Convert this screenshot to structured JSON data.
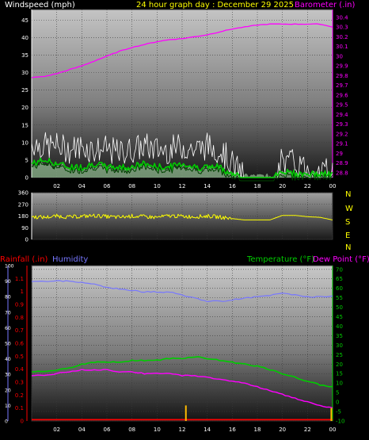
{
  "title_bar": {
    "left": "Windspeed (mph)",
    "center": "24 hour graph day : December 29 2025",
    "right": "Barometer (.in)"
  },
  "lower_headers": {
    "rainfall": "Rainfall (.in)",
    "humidity": "Humidity",
    "temperature": "Temperature (°F)",
    "dewpoint": "Dew Point (°F)"
  },
  "compass_letters": [
    "N",
    "W",
    "S",
    "E",
    "N"
  ],
  "colors": {
    "windspeed_avg": "#00cc00",
    "windspeed_gust": "#ffffff",
    "windspeed_fill": "#b8f0b8",
    "barometer": "#ff00ff",
    "direction": "#ffff00",
    "rainfall": "#ff0000",
    "humidity": "#7777ff",
    "temperature": "#00cc00",
    "dewpoint": "#ff00ff",
    "rain_rate": "#ffbb00",
    "left_axis_wind": "#ffffff",
    "left_axis_rain": "#ff0000",
    "left_axis_humidity": "#7777ff",
    "right_axis_temp": "#00cc00",
    "right_axis_baro": "#ff00ff"
  },
  "chart_data": [
    {
      "type": "line",
      "panel": "wind-barometer",
      "x_ticks": [
        "02",
        "04",
        "06",
        "08",
        "10",
        "12",
        "14",
        "16",
        "18",
        "20",
        "22",
        "00"
      ],
      "y_left_ticks": [
        "0",
        "5",
        "10",
        "15",
        "20",
        "25",
        "30",
        "35",
        "40",
        "45"
      ],
      "y_left_range": [
        0,
        48
      ],
      "y_right_ticks": [
        "28.8",
        "28.9",
        "29",
        "29.1",
        "29.2",
        "29.3",
        "29.4",
        "29.5",
        "29.6",
        "29.7",
        "29.8",
        "29.9",
        "30",
        "30.1",
        "30.2",
        "30.3",
        "30.4"
      ],
      "y_right_range": [
        28.75,
        30.48
      ],
      "x_hours": [
        0,
        1,
        2,
        3,
        4,
        5,
        6,
        7,
        8,
        9,
        10,
        11,
        12,
        13,
        14,
        15,
        16,
        17,
        18,
        19,
        20,
        21,
        22,
        23,
        24
      ],
      "series": [
        {
          "name": "Windspeed (mph)",
          "axis": "left",
          "values": [
            10,
            9,
            9,
            8,
            9,
            8,
            8,
            7,
            8,
            9,
            8,
            8,
            9,
            8,
            9,
            8,
            4,
            0,
            0,
            0,
            5,
            4,
            3,
            2,
            2
          ]
        },
        {
          "name": "Barometer (.in)",
          "axis": "right",
          "values": [
            29.78,
            29.79,
            29.82,
            29.86,
            29.9,
            29.95,
            30.0,
            30.05,
            30.09,
            30.12,
            30.15,
            30.17,
            30.18,
            30.2,
            30.22,
            30.25,
            30.28,
            30.3,
            30.32,
            30.33,
            30.33,
            30.33,
            30.33,
            30.33,
            30.3
          ]
        },
        {
          "name": "",
          "axis": "left",
          "values": [
            4,
            5,
            4,
            3,
            3,
            4,
            3,
            3,
            3,
            4,
            3,
            3,
            4,
            3,
            3,
            3,
            1,
            0,
            0,
            0,
            2,
            1,
            1,
            1,
            1
          ]
        }
      ],
      "grid": true
    },
    {
      "type": "line",
      "panel": "wind-direction",
      "x_hours": [
        0,
        1,
        2,
        3,
        4,
        5,
        6,
        7,
        8,
        9,
        10,
        11,
        12,
        13,
        14,
        15,
        16,
        17,
        18,
        19,
        20,
        21,
        22,
        23,
        24
      ],
      "y_left_ticks": [
        "0",
        "90",
        "180",
        "270",
        "360"
      ],
      "y_range": [
        0,
        360
      ],
      "series": [
        {
          "name": "",
          "values": [
            175,
            170,
            180,
            172,
            178,
            183,
            176,
            170,
            180,
            175,
            170,
            182,
            178,
            175,
            180,
            172,
            160,
            150,
            150,
            150,
            185,
            185,
            175,
            170,
            150
          ]
        }
      ],
      "grid": true
    },
    {
      "type": "line",
      "panel": "humidity-temperature",
      "x_ticks": [
        "02",
        "04",
        "06",
        "08",
        "10",
        "12",
        "14",
        "16",
        "18",
        "20",
        "22",
        "00"
      ],
      "y_left_rain_ticks": [
        "0",
        "0.1",
        "0.2",
        "0.3",
        "0.4",
        "0.5",
        "0.6",
        "0.7",
        "0.8",
        "0.9",
        "1",
        "1.1"
      ],
      "y_left_rain_range": [
        0,
        1.2
      ],
      "y_left_humidity_ticks": [
        "0",
        "10",
        "20",
        "30",
        "40",
        "50",
        "60",
        "70",
        "80",
        "90",
        "100"
      ],
      "y_left_humidity_range": [
        0,
        100
      ],
      "y_right_ticks": [
        "-10",
        "-5",
        "0",
        "5",
        "10",
        "15",
        "20",
        "25",
        "30",
        "35",
        "40",
        "45",
        "50",
        "55",
        "60",
        "65",
        "70"
      ],
      "y_right_range": [
        -10,
        72
      ],
      "x_hours": [
        0,
        1,
        2,
        3,
        4,
        5,
        6,
        7,
        8,
        9,
        10,
        11,
        12,
        13,
        14,
        15,
        16,
        17,
        18,
        19,
        20,
        21,
        22,
        23,
        24
      ],
      "series": [
        {
          "name": "Humidity",
          "axis": "humidity",
          "values": [
            90,
            90,
            90,
            90,
            89,
            88,
            86,
            85,
            84,
            83,
            83,
            83,
            81,
            79,
            77,
            77,
            78,
            79,
            80,
            81,
            82,
            81,
            80,
            80,
            80
          ]
        },
        {
          "name": "Temperature (°F)",
          "axis": "right",
          "values": [
            16,
            16,
            17,
            18,
            20,
            21,
            21,
            21,
            22,
            22,
            22,
            23,
            23,
            24,
            23,
            22,
            21,
            20,
            19,
            17,
            15,
            13,
            11,
            9,
            8
          ]
        },
        {
          "name": "Dew Point (°F)",
          "axis": "right",
          "values": [
            14,
            14,
            15,
            16,
            17,
            17,
            17,
            16,
            16,
            15,
            15,
            15,
            14,
            14,
            13,
            12,
            11,
            10,
            8,
            6,
            4,
            2,
            0,
            -2,
            -3
          ]
        },
        {
          "name": "Rainfall (.in)",
          "axis": "rain",
          "values": [
            0.01,
            0.01,
            0.01,
            0.01,
            0.01,
            0.01,
            0.01,
            0.01,
            0.01,
            0.01,
            0.01,
            0.01,
            0.01,
            0.01,
            0.01,
            0.01,
            0.01,
            0.01,
            0.01,
            0.01,
            0.01,
            0.01,
            0.01,
            0.01,
            0.01
          ]
        }
      ],
      "rain_rate_spikes": [
        {
          "hour": 12.3,
          "value": 0.12
        },
        {
          "hour": 23.9,
          "value": 0.1
        }
      ],
      "grid": true
    }
  ]
}
